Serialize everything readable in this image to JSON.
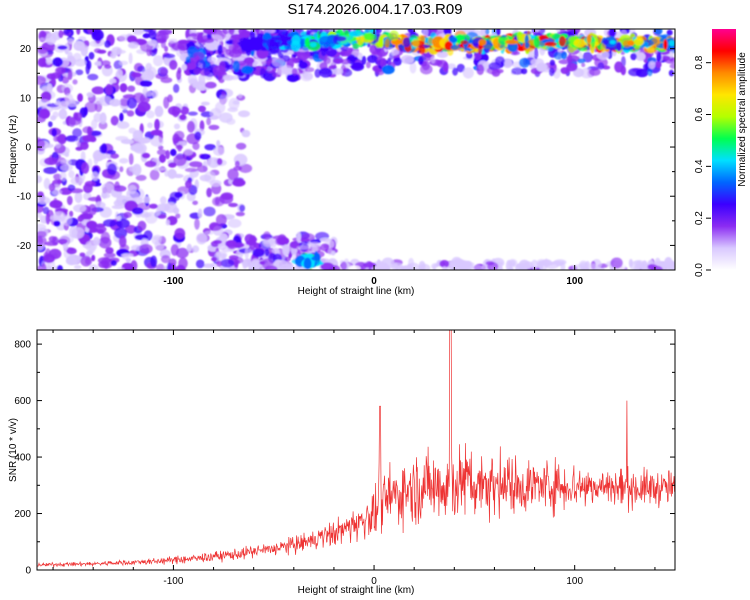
{
  "title": "S174.2026.004.17.03.R09",
  "chart_data": [
    {
      "type": "heatmap",
      "xlabel": "Height of straight line (km)",
      "ylabel": "Frequency (Hz)",
      "xlim": [
        -168,
        150
      ],
      "ylim": [
        -25,
        24
      ],
      "xticks": [
        -100,
        0,
        100
      ],
      "yticks": [
        -20,
        -10,
        0,
        10,
        20
      ],
      "colorbar": {
        "label": "Normalized spectral amplitude",
        "range": [
          0,
          0.93
        ],
        "ticks": [
          0.0,
          0.2,
          0.4,
          0.6,
          0.8
        ],
        "colors": [
          "#ffffff",
          "#d9c8ff",
          "#8b2cf2",
          "#3b00ff",
          "#0066ff",
          "#00e0ff",
          "#00ff50",
          "#b4ff00",
          "#ffe600",
          "#ff8a00",
          "#ff0000",
          "#ff0090"
        ]
      },
      "ridge": {
        "description_free": true,
        "x": [
          -60,
          -40,
          -20,
          0,
          20,
          40,
          60,
          80,
          100,
          120,
          145
        ],
        "y": [
          21,
          21.5,
          22,
          22,
          21,
          21,
          21,
          21.5,
          21.5,
          21,
          21
        ]
      }
    },
    {
      "type": "line",
      "xlabel": "Height of straight line (km)",
      "ylabel": "SNR (10 * v/v)",
      "xlim": [
        -168,
        150
      ],
      "ylim": [
        0,
        850
      ],
      "xticks": [
        -100,
        0,
        100
      ],
      "yticks": [
        0,
        200,
        400,
        600,
        800
      ],
      "color": "#ee3333",
      "envelope": {
        "x": [
          -168,
          -140,
          -110,
          -90,
          -70,
          -50,
          -35,
          -20,
          -10,
          0,
          5,
          15,
          30,
          38,
          50,
          70,
          90,
          110,
          130,
          150
        ],
        "mean": [
          18,
          22,
          30,
          40,
          55,
          75,
          95,
          130,
          160,
          200,
          240,
          280,
          300,
          310,
          310,
          300,
          300,
          295,
          290,
          290
        ],
        "amp": [
          12,
          14,
          20,
          28,
          35,
          45,
          60,
          80,
          100,
          150,
          180,
          200,
          230,
          260,
          220,
          180,
          160,
          140,
          120,
          110
        ]
      }
    }
  ]
}
